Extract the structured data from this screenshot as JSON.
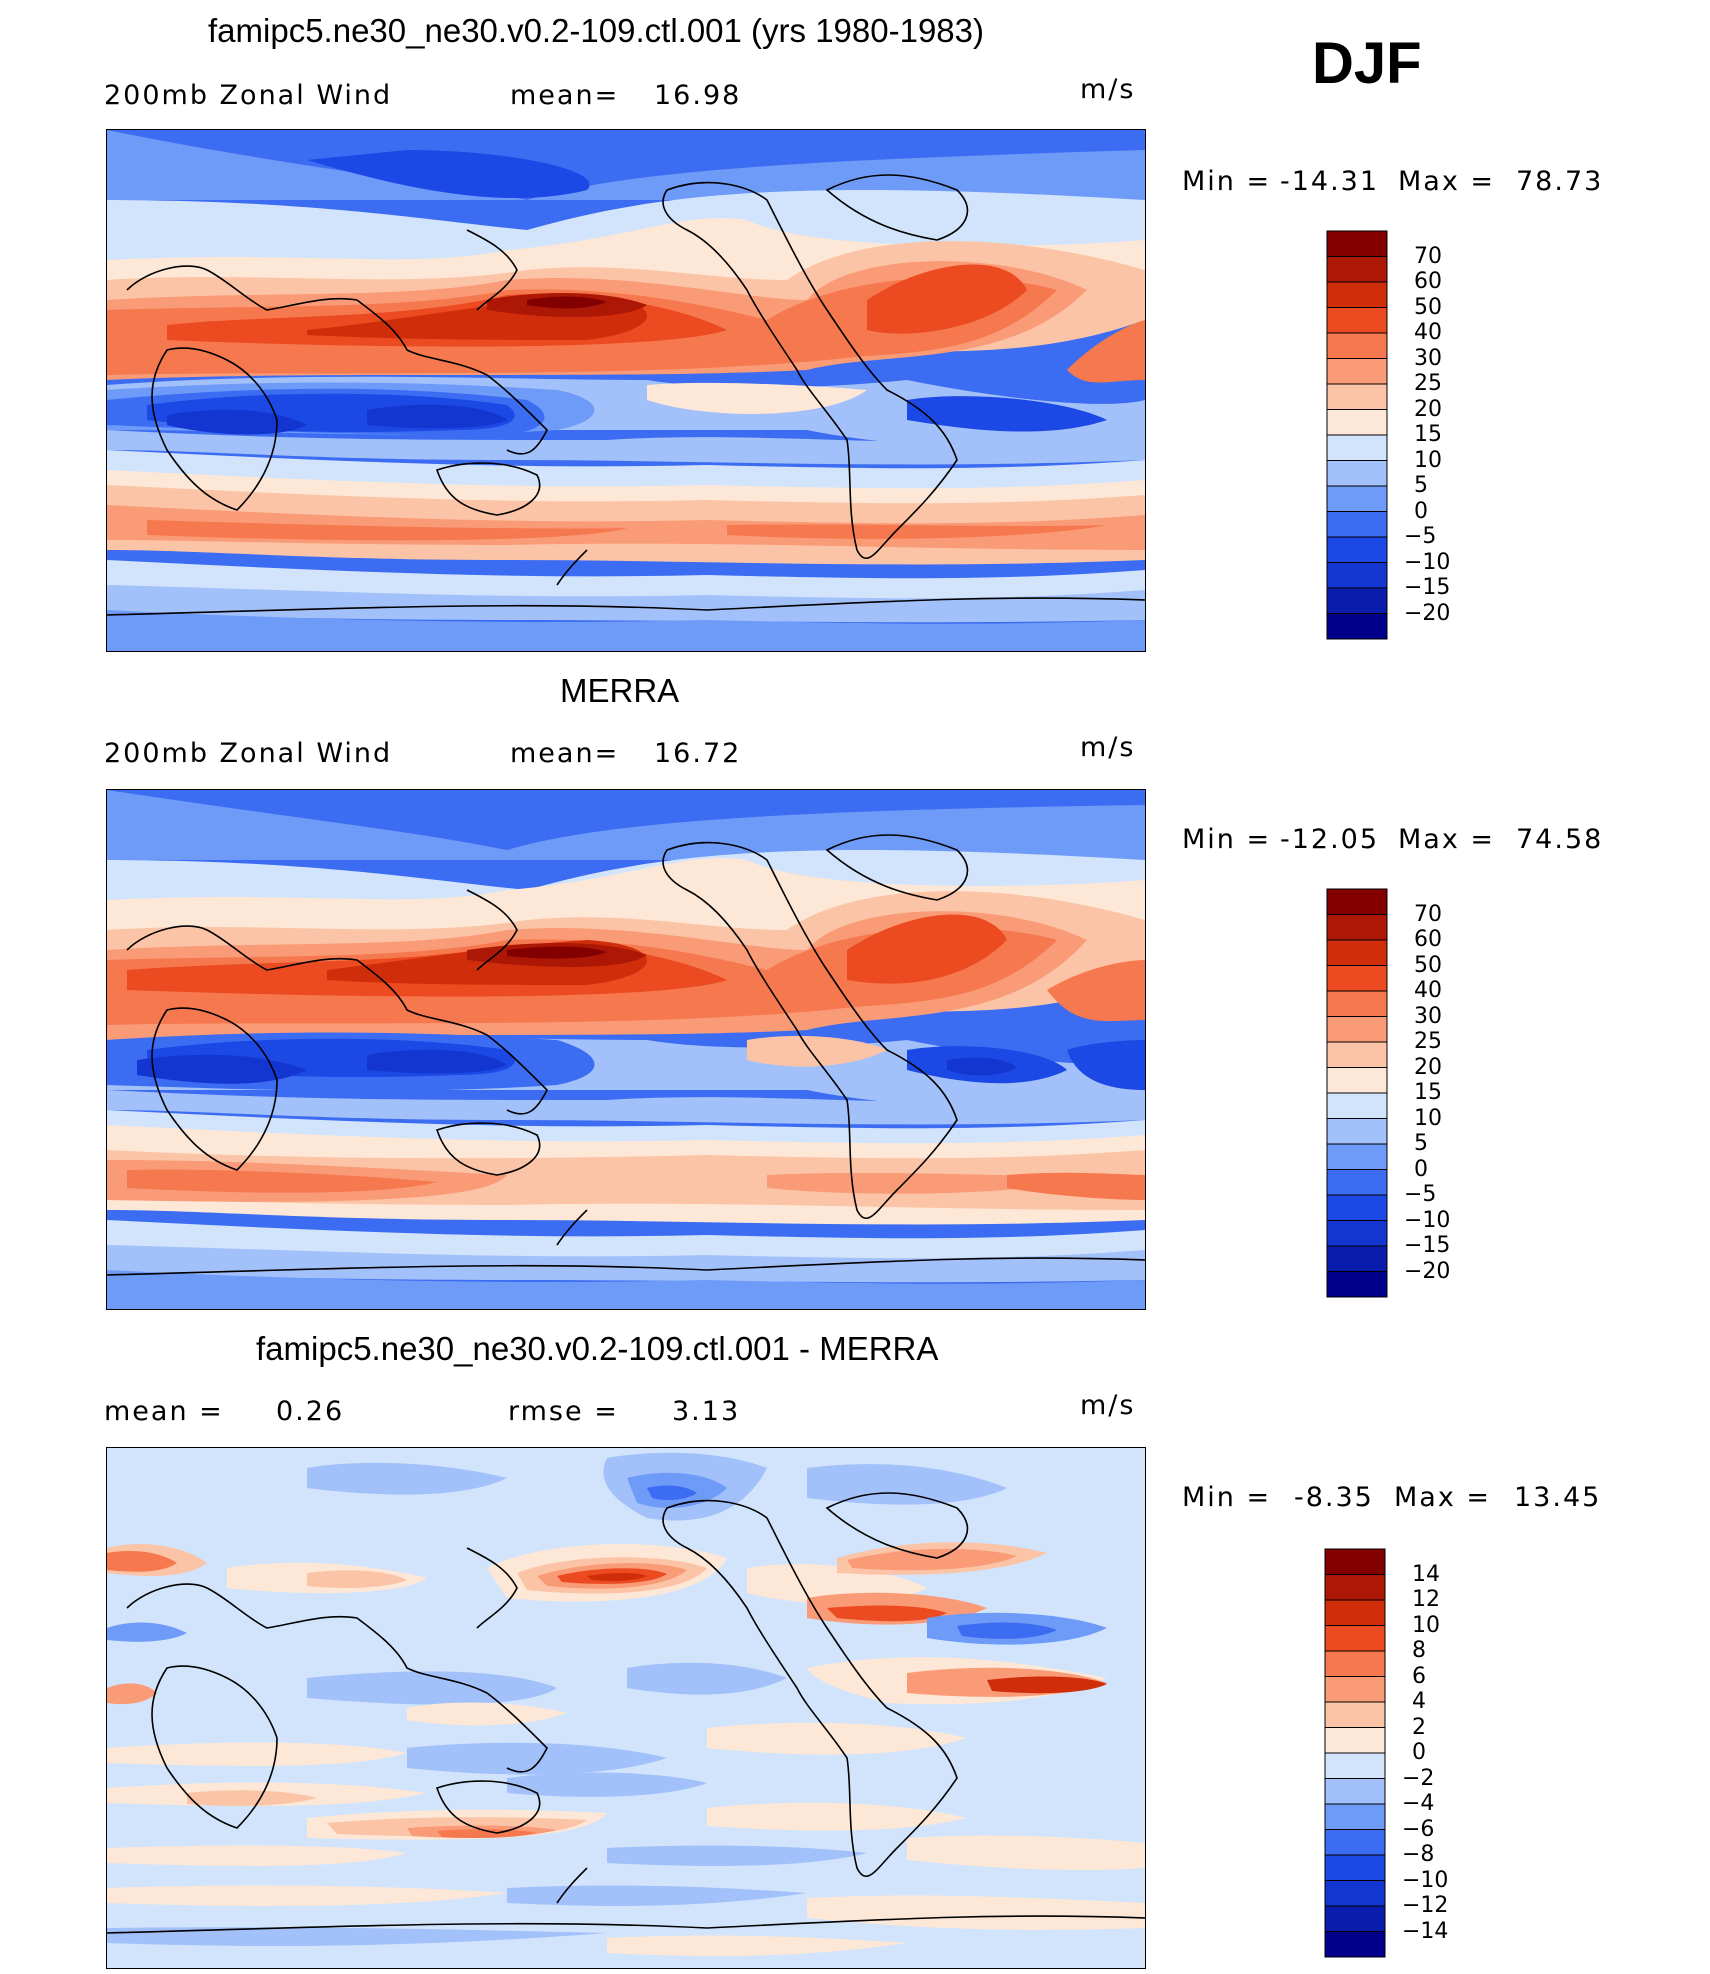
{
  "main_title": "DJF",
  "units": "m/s",
  "colors": {
    "full_scale": [
      "#00008b",
      "#0a1cac",
      "#1236cf",
      "#1c48e5",
      "#3c6cf1",
      "#6e9af8",
      "#a2c0fa",
      "#d2e4fc",
      "#fde7d6",
      "#fcc4a6",
      "#fa9b78",
      "#f5784f",
      "#ec4a20",
      "#d02e0a",
      "#ad1806",
      "#830000"
    ],
    "diff_scale": [
      "#00008b",
      "#0a1cac",
      "#1236cf",
      "#1c48e5",
      "#3c6cf1",
      "#6e9af8",
      "#a2c0fa",
      "#d2e4fc",
      "#fde7d6",
      "#fcc4a6",
      "#fa9b78",
      "#f5784f",
      "#ec4a20",
      "#d02e0a",
      "#ad1806",
      "#830000"
    ]
  },
  "panels": [
    {
      "title": "famipc5.ne30_ne30.v0.2-109.ctl.001 (yrs 1980-1983)",
      "left_label": "200mb Zonal Wind",
      "stat_label": "mean=",
      "stat_value": "16.98",
      "units": "m/s",
      "min_label": "Min =",
      "min_value": "-14.31",
      "max_label": "Max =",
      "max_value": "78.73",
      "scale": "full",
      "levels": [
        "70",
        "60",
        "50",
        "40",
        "30",
        "25",
        "20",
        "15",
        "10",
        "5",
        "0",
        "-5",
        "-10",
        "-15",
        "-20"
      ]
    },
    {
      "title": "MERRA",
      "left_label": "200mb Zonal Wind",
      "stat_label": "mean=",
      "stat_value": "16.72",
      "units": "m/s",
      "min_label": "Min =",
      "min_value": "-12.05",
      "max_label": "Max =",
      "max_value": "74.58",
      "scale": "full",
      "levels": [
        "70",
        "60",
        "50",
        "40",
        "30",
        "25",
        "20",
        "15",
        "10",
        "5",
        "0",
        "-5",
        "-10",
        "-15",
        "-20"
      ]
    },
    {
      "title": "famipc5.ne30_ne30.v0.2-109.ctl.001 - MERRA",
      "left_label": "mean =",
      "left_value": "0.26",
      "stat_label": "rmse =",
      "stat_value": "3.13",
      "units": "m/s",
      "min_label": "Min =",
      "min_value": "-8.35",
      "max_label": "Max =",
      "max_value": "13.45",
      "scale": "diff",
      "levels": [
        "14",
        "12",
        "10",
        "8",
        "6",
        "4",
        "2",
        "0",
        "-2",
        "-4",
        "-6",
        "-8",
        "-10",
        "-12",
        "-14"
      ]
    }
  ]
}
